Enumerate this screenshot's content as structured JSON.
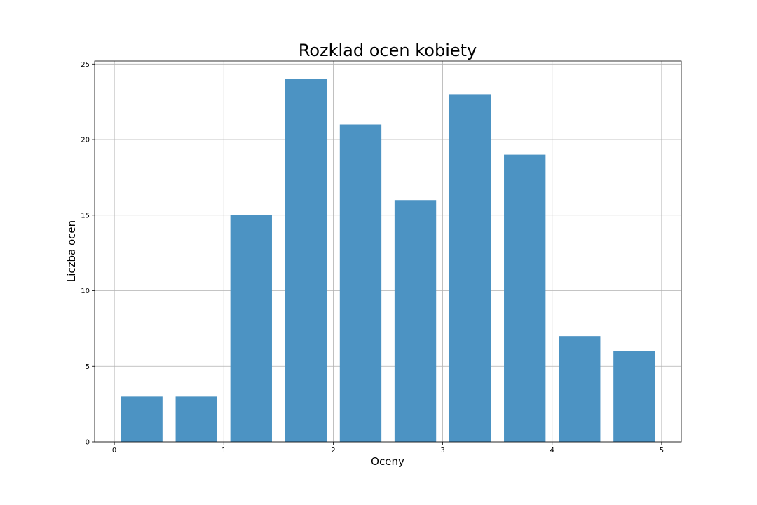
{
  "chart_data": {
    "type": "bar",
    "title": "Rozklad ocen kobiety",
    "xlabel": "Oceny",
    "ylabel": "Liczba ocen",
    "bars": [
      {
        "x0": 0.0,
        "x1": 0.5,
        "value": 3
      },
      {
        "x0": 0.5,
        "x1": 1.0,
        "value": 3
      },
      {
        "x0": 1.0,
        "x1": 1.5,
        "value": 15
      },
      {
        "x0": 1.5,
        "x1": 2.0,
        "value": 24
      },
      {
        "x0": 2.0,
        "x1": 2.5,
        "value": 21
      },
      {
        "x0": 2.5,
        "x1": 3.0,
        "value": 16
      },
      {
        "x0": 3.0,
        "x1": 3.5,
        "value": 23
      },
      {
        "x0": 3.5,
        "x1": 4.0,
        "value": 19
      },
      {
        "x0": 4.0,
        "x1": 4.5,
        "value": 7
      },
      {
        "x0": 4.5,
        "x1": 5.0,
        "value": 6
      }
    ],
    "xticks": [
      "0",
      "1",
      "2",
      "3",
      "4",
      "5"
    ],
    "yticks": [
      "0",
      "5",
      "10",
      "15",
      "20",
      "25"
    ],
    "xlim": [
      -0.18,
      5.18
    ],
    "ylim": [
      0,
      25.2
    ],
    "grid": true,
    "bar_color": "#4c93c3"
  }
}
